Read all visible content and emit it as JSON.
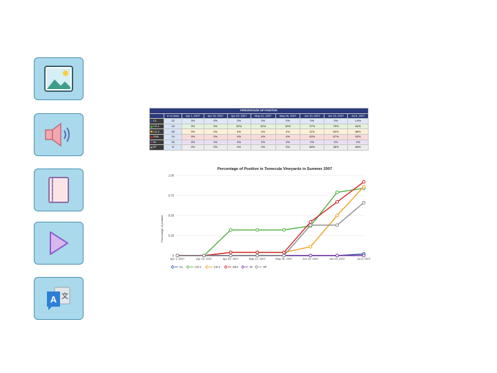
{
  "sidebar": {
    "items": [
      {
        "icon": "image-icon"
      },
      {
        "icon": "speaker-icon"
      },
      {
        "icon": "notebook-icon"
      },
      {
        "icon": "play-icon"
      },
      {
        "icon": "translate-icon",
        "label_a": "A",
        "label_b": "文"
      }
    ],
    "colors": {
      "tile_fill": "#a9d9ea",
      "tile_border": "#4a8fb0"
    }
  },
  "table": {
    "title": "PERCENTAGE OF POSITIVE",
    "header": [
      "# of vines",
      "Apr 1, 2007",
      "Apr 15, 2007",
      "Apr 29, 2007",
      "May 12, 2007",
      "May 26, 2007",
      "Jun 10, 2007",
      "Jun 24, 2007",
      "Jul 8, 2007"
    ],
    "rows": [
      {
        "name": "CL",
        "color": "#2a4ea6",
        "bg": "#dfe8f6",
        "cells": [
          "22",
          "0%",
          "0%",
          "0%",
          "0%",
          "0%",
          "0%",
          "0%",
          "1.8%"
        ]
      },
      {
        "name": "CZ-1",
        "color": "#4caf3a",
        "bg": "#e4f2dc",
        "cells": [
          "19",
          "0%",
          "0%",
          "32%",
          "32%",
          "32%",
          "37%",
          "79%",
          "84%"
        ]
      },
      {
        "name": "CZ-2",
        "color": "#f0a020",
        "bg": "#fdf0d8",
        "cells": [
          "25",
          "0%",
          "0%",
          "4%",
          "4%",
          "4%",
          "11%",
          "50%",
          "86%"
        ]
      },
      {
        "name": "ZSA",
        "color": "#d02020",
        "bg": "#f8dada",
        "cells": [
          "24",
          "0%",
          "0%",
          "4%",
          "4%",
          "4%",
          "42%",
          "67%",
          "92%"
        ]
      },
      {
        "name": "W",
        "color": "#7a3aa6",
        "bg": "#eadff2",
        "cells": [
          "30",
          "0%",
          "0%",
          "0%",
          "0%",
          "0%",
          "0%",
          "0%",
          "0%"
        ]
      },
      {
        "name": "9F",
        "color": "#8a8a8a",
        "bg": "#ececec",
        "cells": [
          "8",
          "0%",
          "0%",
          "0%",
          "0%",
          "0%",
          "38%",
          "38%",
          "66%"
        ]
      }
    ]
  },
  "chart_data": {
    "type": "line",
    "title": "Percentage of Positive in Temecula Vineyards in Summer 2007",
    "ylabel": "Percentage of positive",
    "xlabel": "",
    "categories": [
      "Apr 1, 2007",
      "Apr 15, 2007",
      "Apr 29, 2007",
      "May 12, 2007",
      "May 26, 2007",
      "Jun 10, 2007",
      "Jun 24, 2007",
      "Jul 8, 2007"
    ],
    "ylim": [
      0,
      1.0
    ],
    "yticks": [
      "0",
      "0.25",
      "0.50",
      "0.75",
      "1.00"
    ],
    "grid": true,
    "legend_position": "bottom",
    "series": [
      {
        "name": "CL",
        "color": "#2a4ea6",
        "values": [
          0,
          0,
          0,
          0,
          0,
          0,
          0,
          0.02
        ]
      },
      {
        "name": "CZ-1",
        "color": "#4caf3a",
        "values": [
          0,
          0,
          0.32,
          0.32,
          0.32,
          0.37,
          0.79,
          0.84
        ]
      },
      {
        "name": "CZ-2",
        "color": "#f0a020",
        "values": [
          0,
          0,
          0.04,
          0.04,
          0.04,
          0.11,
          0.5,
          0.86
        ]
      },
      {
        "name": "ZSA",
        "color": "#d02020",
        "values": [
          0,
          0,
          0.04,
          0.04,
          0.04,
          0.42,
          0.67,
          0.92
        ]
      },
      {
        "name": "W",
        "color": "#7a3aa6",
        "values": [
          0,
          0,
          0,
          0,
          0,
          0,
          0,
          0
        ]
      },
      {
        "name": "9F",
        "color": "#8a8a8a",
        "values": [
          0,
          0,
          0,
          0,
          0,
          0.38,
          0.38,
          0.66
        ]
      }
    ]
  }
}
